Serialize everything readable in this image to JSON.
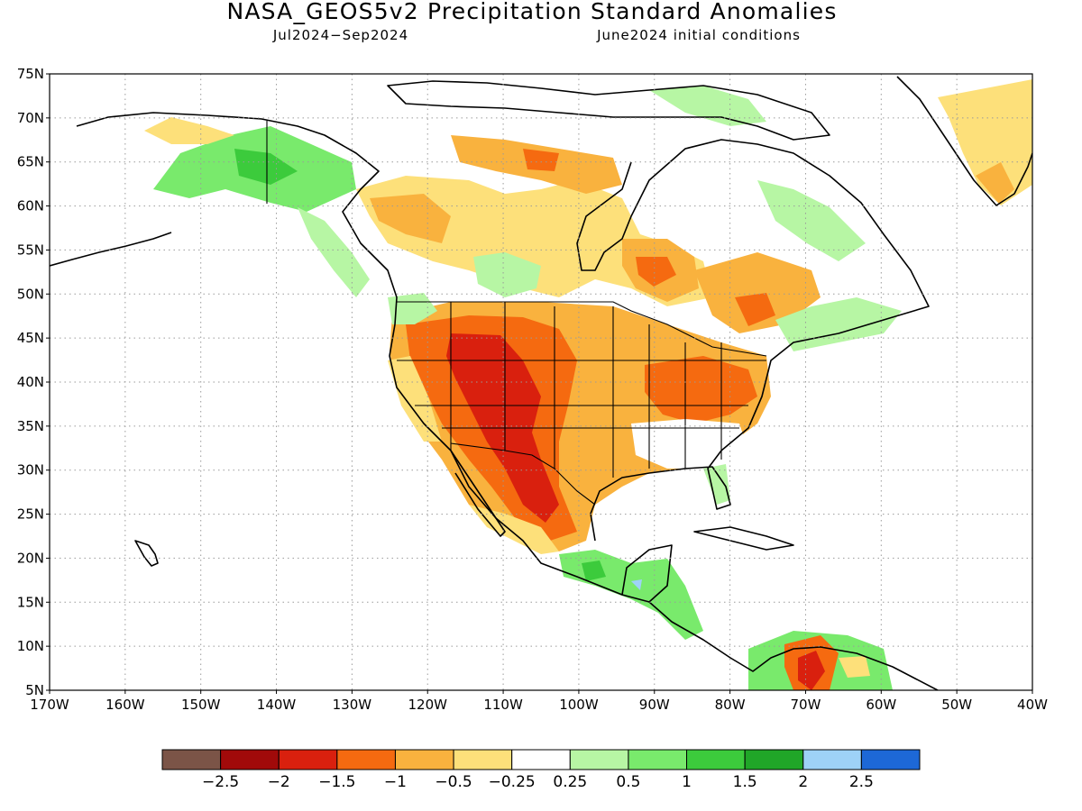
{
  "header": {
    "title": "NASA_GEOS5v2 Precipitation Standard Anomalies",
    "period": "Jul2024−Sep2024",
    "initial_conditions": "June2024 initial conditions"
  },
  "map": {
    "lat_range": [
      5,
      75
    ],
    "lon_range": [
      -170,
      -40
    ],
    "lat_labels": [
      "75N",
      "70N",
      "65N",
      "60N",
      "55N",
      "50N",
      "45N",
      "40N",
      "35N",
      "30N",
      "25N",
      "20N",
      "15N",
      "10N",
      "5N"
    ],
    "lon_labels": [
      "170W",
      "160W",
      "150W",
      "140W",
      "130W",
      "120W",
      "110W",
      "100W",
      "90W",
      "80W",
      "70W",
      "60W",
      "50W",
      "40W"
    ],
    "gridlines": "dotted",
    "land_outline_color": "#000000"
  },
  "colorbar": {
    "colors": [
      "#7b5447",
      "#a10a0a",
      "#d9200e",
      "#f56a10",
      "#f9b23e",
      "#fde07a",
      "#ffffff",
      "#b7f6a4",
      "#79ea6c",
      "#3ccb3c",
      "#20a628",
      "#9ed2f7",
      "#1d68d7"
    ],
    "labels": [
      "−2.5",
      "−2",
      "−1.5",
      "−1",
      "−0.5",
      "−0.25",
      "0.25",
      "0.5",
      "1",
      "1.5",
      "2",
      "2.5"
    ]
  },
  "anomaly_regions": [
    {
      "name": "us-southwest-core",
      "category": -1.5,
      "color": "#d9200e"
    },
    {
      "name": "us-mountain-west",
      "category": -1,
      "color": "#f56a10"
    },
    {
      "name": "us-plains",
      "category": -0.5,
      "color": "#f9b23e"
    },
    {
      "name": "ohio-valley",
      "category": -1,
      "color": "#f56a10"
    },
    {
      "name": "hudson-bay-south",
      "category": -1,
      "color": "#f56a10"
    },
    {
      "name": "alaska-interior",
      "category": 0.5,
      "color": "#79ea6c"
    },
    {
      "name": "central-america",
      "category": 0.5,
      "color": "#79ea6c"
    },
    {
      "name": "northern-south-america",
      "category": -1.5,
      "color": "#d9200e"
    },
    {
      "name": "greenland-south",
      "category": -0.5,
      "color": "#f9b23e"
    }
  ]
}
